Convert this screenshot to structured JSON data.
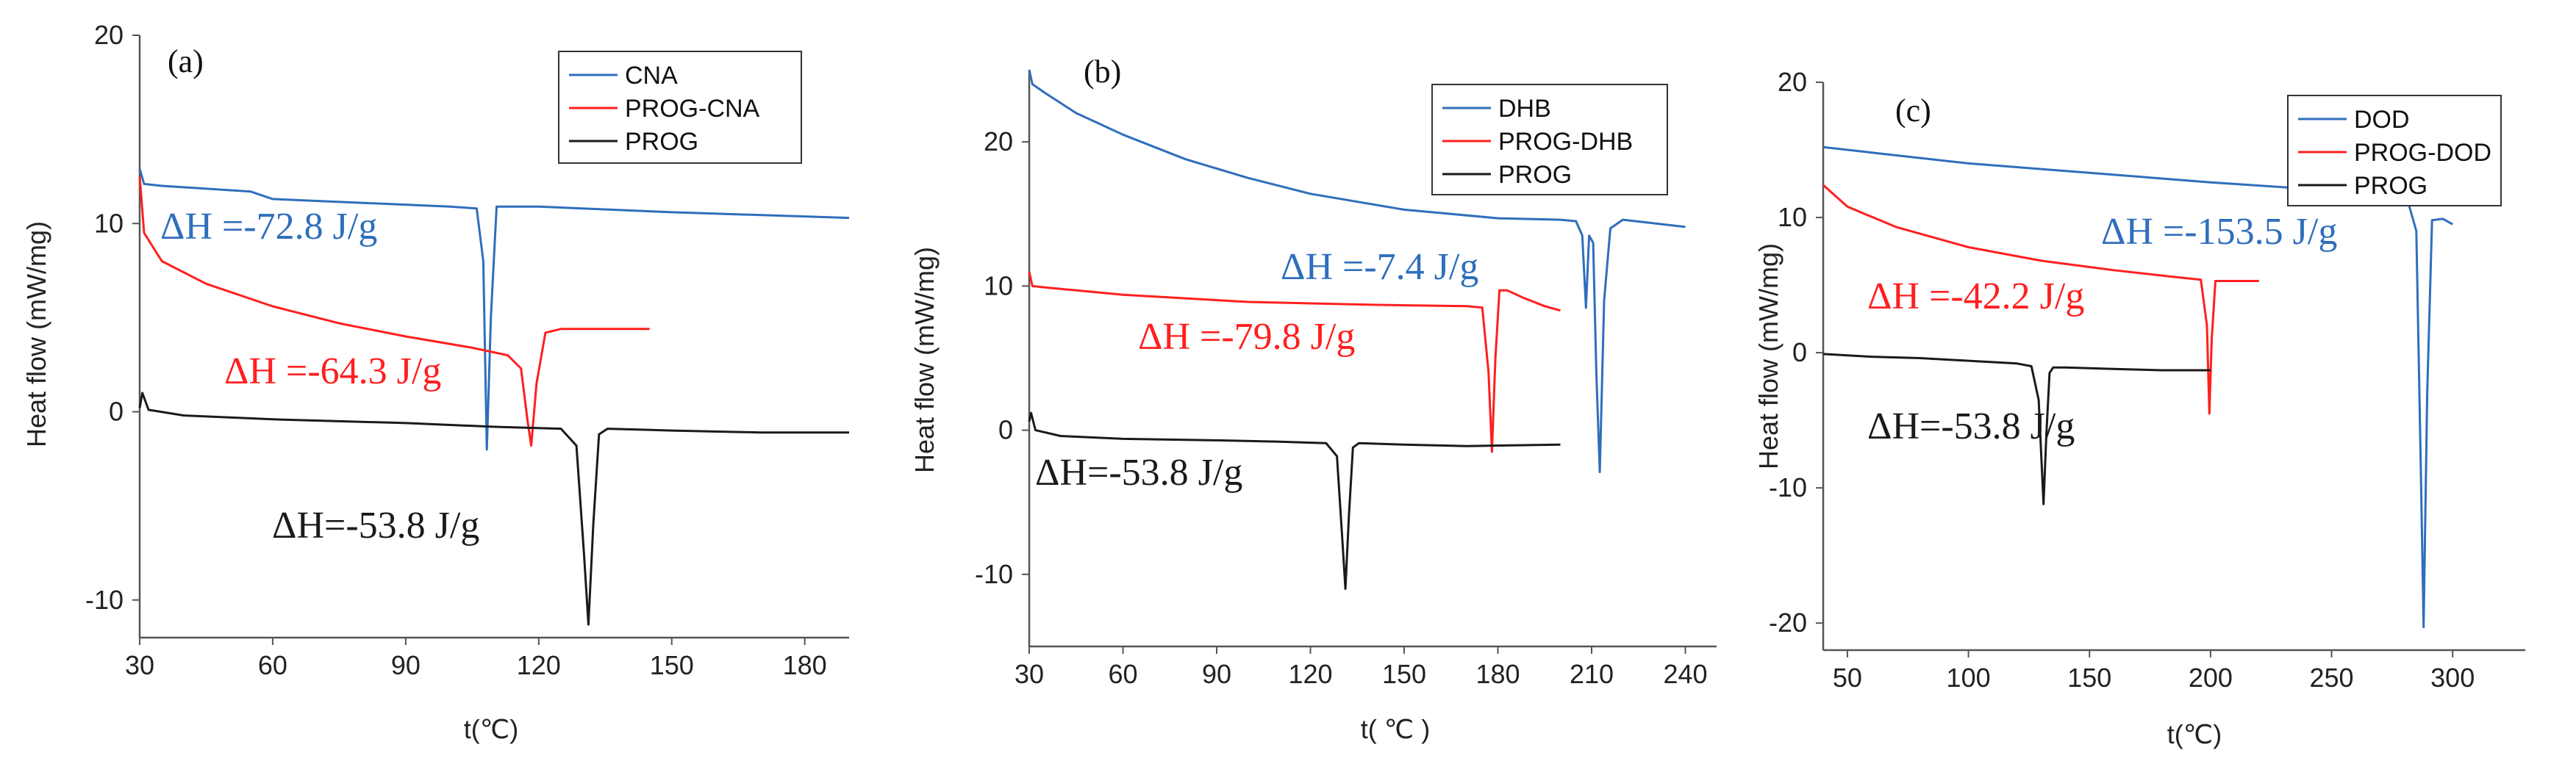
{
  "chart_data": [
    {
      "type": "line",
      "panel": "(a)",
      "xlabel": "t(℃)",
      "ylabel": "Heat flow (mW/mg)",
      "xlim": [
        30,
        190
      ],
      "ylim": [
        -12,
        20
      ],
      "xticks": [
        30,
        60,
        90,
        120,
        150,
        180
      ],
      "yticks": [
        20,
        10,
        0,
        -10
      ],
      "legend_position": "top-right",
      "series": [
        {
          "name": "CNA",
          "color": "#2f6ebc",
          "x": [
            30,
            31,
            35,
            55,
            60,
            80,
            100,
            106,
            107.5,
            108.3,
            109.2,
            110.5,
            120,
            150,
            190
          ],
          "y": [
            12.9,
            12.1,
            12.0,
            11.7,
            11.3,
            11.1,
            10.9,
            10.8,
            8.0,
            -2.0,
            5.0,
            10.9,
            10.9,
            10.6,
            10.3
          ]
        },
        {
          "name": "PROG-CNA",
          "color": "#ff1f1f",
          "x": [
            30,
            31,
            35,
            45,
            60,
            75,
            90,
            105,
            113,
            116,
            117.5,
            118.3,
            119.5,
            121.5,
            125,
            135,
            145
          ],
          "y": [
            12.5,
            9.5,
            8.0,
            6.8,
            5.6,
            4.7,
            4.0,
            3.4,
            3.0,
            2.3,
            -0.5,
            -1.8,
            1.5,
            4.2,
            4.4,
            4.4,
            4.4
          ]
        },
        {
          "name": "PROG",
          "color": "#1a1a1a",
          "x": [
            30,
            30.6,
            32,
            40,
            60,
            90,
            110,
            125,
            128.5,
            130.2,
            131.2,
            132.3,
            133.6,
            135.5,
            150,
            170,
            190
          ],
          "y": [
            0.2,
            1.0,
            0.1,
            -0.2,
            -0.4,
            -0.6,
            -0.8,
            -0.9,
            -1.8,
            -7.5,
            -11.3,
            -6.0,
            -1.2,
            -0.9,
            -1.0,
            -1.1,
            -1.1
          ]
        }
      ],
      "annotations": [
        {
          "text": "ΔH =-72.8 J/g",
          "color": "#2f6ebc"
        },
        {
          "text": "ΔH =-64.3 J/g",
          "color": "#ff1f1f"
        },
        {
          "text": "ΔH=-53.8 J/g",
          "color": "#1a1a1a"
        }
      ]
    },
    {
      "type": "line",
      "panel": "(b)",
      "xlabel": "t( ℃ )",
      "ylabel": "Heat flow (mW/mg)",
      "xlim": [
        30,
        250
      ],
      "ylim": [
        -15,
        25
      ],
      "xticks": [
        30,
        60,
        90,
        120,
        150,
        180,
        210,
        240
      ],
      "yticks": [
        20,
        10,
        0,
        -10
      ],
      "legend_position": "top-right",
      "series": [
        {
          "name": "DHB",
          "color": "#2f6ebc",
          "x": [
            30,
            31,
            35,
            45,
            60,
            80,
            100,
            120,
            150,
            180,
            200,
            205,
            207,
            208.2,
            209.2,
            210.5,
            211.5,
            212.6,
            214,
            216,
            220,
            240
          ],
          "y": [
            25,
            24.0,
            23.4,
            22.0,
            20.5,
            18.8,
            17.5,
            16.4,
            15.3,
            14.7,
            14.6,
            14.5,
            13.5,
            8.5,
            13.5,
            13.0,
            4.0,
            -2.9,
            9.0,
            14.0,
            14.6,
            14.1
          ]
        },
        {
          "name": "PROG-DHB",
          "color": "#ff1f1f",
          "x": [
            30,
            31,
            35,
            60,
            100,
            140,
            170,
            175,
            177,
            178.1,
            179.2,
            180.5,
            183,
            188,
            195,
            200
          ],
          "y": [
            11.0,
            10.0,
            9.9,
            9.4,
            8.9,
            8.7,
            8.6,
            8.5,
            4.0,
            -1.5,
            5.0,
            9.7,
            9.7,
            9.2,
            8.6,
            8.3
          ]
        },
        {
          "name": "PROG",
          "color": "#1a1a1a",
          "x": [
            30,
            30.6,
            32,
            40,
            60,
            90,
            110,
            125,
            128.5,
            130.2,
            131.2,
            132.3,
            133.6,
            135.5,
            150,
            170,
            200
          ],
          "y": [
            0.6,
            1.2,
            0.0,
            -0.4,
            -0.6,
            -0.7,
            -0.8,
            -0.9,
            -1.8,
            -7.5,
            -11.0,
            -6.0,
            -1.2,
            -0.9,
            -1.0,
            -1.1,
            -1.0
          ]
        }
      ],
      "annotations": [
        {
          "text": "ΔH =-7.4 J/g",
          "color": "#2f6ebc"
        },
        {
          "text": "ΔH =-79.8 J/g",
          "color": "#ff1f1f"
        },
        {
          "text": "ΔH=-53.8 J/g",
          "color": "#1a1a1a"
        }
      ]
    },
    {
      "type": "line",
      "panel": "(c)",
      "xlabel": "t(℃)",
      "ylabel": "Heat flow (mW/mg)",
      "xlim": [
        40,
        330
      ],
      "ylim": [
        -22,
        20
      ],
      "xticks": [
        50,
        100,
        150,
        200,
        250,
        300
      ],
      "yticks": [
        20,
        10,
        0,
        -10,
        -20
      ],
      "legend_position": "top-right",
      "series": [
        {
          "name": "DOD",
          "color": "#2f6ebc",
          "x": [
            40,
            60,
            100,
            150,
            200,
            250,
            275,
            282,
            285,
            287,
            288,
            289.5,
            291.5,
            296,
            300
          ],
          "y": [
            15.2,
            14.8,
            14.0,
            13.3,
            12.6,
            12.0,
            11.5,
            10.9,
            9.0,
            -10.0,
            -20.3,
            -3.0,
            9.8,
            9.9,
            9.5
          ]
        },
        {
          "name": "PROG-DOD",
          "color": "#ff1f1f",
          "x": [
            40,
            50,
            70,
            100,
            130,
            160,
            185,
            196,
            198.5,
            199.5,
            200.5,
            202,
            210,
            220
          ],
          "y": [
            12.4,
            10.8,
            9.3,
            7.8,
            6.8,
            6.1,
            5.6,
            5.4,
            2.0,
            -4.5,
            1.0,
            5.3,
            5.3,
            5.3
          ]
        },
        {
          "name": "PROG",
          "color": "#1a1a1a",
          "x": [
            40,
            60,
            80,
            100,
            120,
            126,
            129,
            131,
            132.2,
            133.5,
            135,
            140,
            160,
            180,
            200
          ],
          "y": [
            -0.1,
            -0.3,
            -0.4,
            -0.6,
            -0.8,
            -1.0,
            -3.5,
            -11.2,
            -6.0,
            -1.5,
            -1.1,
            -1.1,
            -1.2,
            -1.3,
            -1.3
          ]
        }
      ],
      "annotations": [
        {
          "text": "ΔH =-153.5 J/g",
          "color": "#2f6ebc"
        },
        {
          "text": "ΔH =-42.2 J/g",
          "color": "#ff1f1f"
        },
        {
          "text": "ΔH=-53.8 J/g",
          "color": "#1a1a1a"
        }
      ]
    }
  ]
}
